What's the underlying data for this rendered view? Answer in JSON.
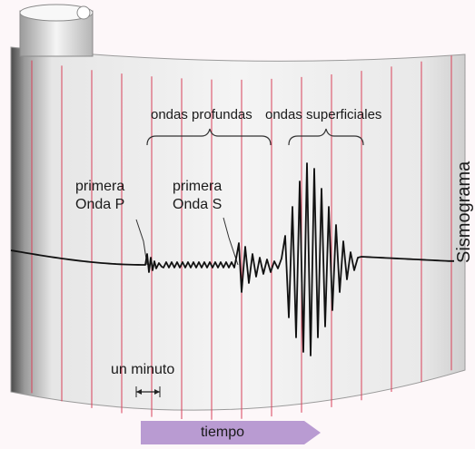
{
  "title": "Sismograma",
  "labels": {
    "deep_waves": "ondas profundas",
    "surface_waves": "ondas superficiales",
    "p_wave_line1": "primera",
    "p_wave_line2": "Onda P",
    "s_wave_line1": "primera",
    "s_wave_line2": "Onda S",
    "one_minute": "un minuto",
    "time": "tiempo"
  },
  "colors": {
    "paper": "#f1f1f1",
    "minute_lines": "#d9415a",
    "trace": "#111111",
    "time_arrow": "#b99bd2",
    "drum_shadow": "#8a8a8a"
  },
  "icons": {
    "paper_roll": "paper-roll-icon",
    "time_arrow": "arrow-right-icon",
    "minute_span": "double-arrow-icon"
  }
}
